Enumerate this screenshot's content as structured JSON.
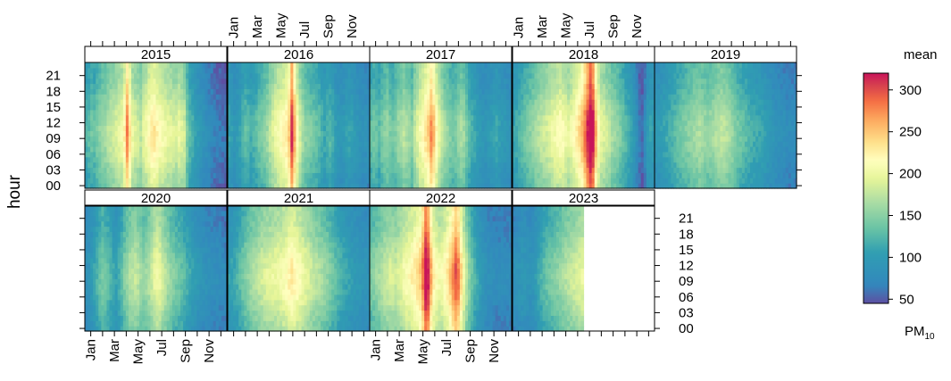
{
  "chart_data": {
    "type": "heatmap",
    "ylabel": "hour",
    "month_tick_labels": [
      "Jan",
      "Mar",
      "May",
      "Jul",
      "Sep",
      "Nov"
    ],
    "hour_tick_labels": [
      "00",
      "03",
      "06",
      "09",
      "12",
      "15",
      "18",
      "21"
    ],
    "hours_ticks": [
      0,
      3,
      6,
      9,
      12,
      15,
      18,
      21
    ],
    "months_ticks": [
      1,
      3,
      5,
      7,
      9,
      11
    ],
    "colorbar": {
      "title": "mean",
      "label_main": "PM",
      "label_sub": "10",
      "range": [
        45,
        320
      ],
      "tick_values": [
        50,
        100,
        150,
        200,
        250,
        300
      ],
      "tick_labels": [
        "50",
        "100",
        "150",
        "200",
        "250",
        "300"
      ]
    },
    "panels": [
      {
        "year": "2015",
        "weekly_mean": [
          112,
          118,
          126,
          122,
          132,
          140,
          146,
          150,
          158,
          164,
          168,
          172,
          180,
          185,
          205,
          255,
          215,
          182,
          174,
          168,
          160,
          178,
          188,
          200,
          210,
          212,
          202,
          196,
          190,
          185,
          180,
          178,
          174,
          172,
          180,
          175,
          168,
          132,
          116,
          108,
          100,
          92,
          86,
          80,
          74,
          70,
          66,
          62,
          60,
          58,
          56,
          55
        ]
      },
      {
        "year": "2016",
        "weekly_mean": [
          100,
          94,
          88,
          92,
          100,
          110,
          120,
          115,
          108,
          112,
          118,
          128,
          132,
          138,
          146,
          160,
          172,
          184,
          190,
          196,
          204,
          210,
          230,
          285,
          240,
          196,
          170,
          152,
          140,
          136,
          132,
          128,
          124,
          120,
          110,
          104,
          112,
          116,
          108,
          96,
          90,
          86,
          90,
          96,
          100,
          96,
          90,
          86,
          82,
          80,
          78,
          76
        ]
      },
      {
        "year": "2017",
        "weekly_mean": [
          120,
          128,
          124,
          118,
          130,
          138,
          142,
          132,
          128,
          135,
          146,
          150,
          158,
          152,
          148,
          140,
          162,
          176,
          190,
          200,
          212,
          225,
          250,
          232,
          200,
          178,
          164,
          150,
          144,
          136,
          130,
          134,
          142,
          150,
          146,
          130,
          118,
          110,
          104,
          96,
          90,
          86,
          84,
          90,
          94,
          98,
          102,
          96,
          92,
          88,
          84,
          82
        ]
      },
      {
        "year": "2018",
        "weekly_mean": [
          102,
          108,
          114,
          120,
          128,
          132,
          138,
          144,
          150,
          156,
          162,
          166,
          170,
          176,
          182,
          186,
          190,
          196,
          192,
          184,
          178,
          186,
          196,
          208,
          220,
          235,
          260,
          290,
          318,
          300,
          240,
          196,
          180,
          174,
          166,
          160,
          150,
          146,
          140,
          132,
          124,
          116,
          108,
          100,
          88,
          74,
          60,
          54,
          70,
          92,
          98,
          96
        ]
      },
      {
        "year": "2019",
        "weekly_mean": [
          88,
          92,
          96,
          100,
          104,
          108,
          112,
          118,
          124,
          128,
          132,
          134,
          138,
          142,
          146,
          150,
          154,
          150,
          146,
          142,
          146,
          150,
          154,
          158,
          162,
          160,
          156,
          150,
          144,
          136,
          130,
          126,
          122,
          118,
          114,
          110,
          106,
          104,
          102,
          100,
          96,
          92,
          88,
          84,
          80,
          78,
          76,
          74,
          72,
          70,
          70,
          70
        ]
      },
      {
        "year": "2020",
        "weekly_mean": [
          78,
          84,
          92,
          102,
          112,
          124,
          132,
          128,
          122,
          112,
          104,
          98,
          108,
          120,
          134,
          146,
          156,
          160,
          164,
          158,
          150,
          144,
          148,
          156,
          166,
          178,
          186,
          180,
          170,
          160,
          150,
          142,
          136,
          130,
          126,
          122,
          116,
          110,
          104,
          98,
          92,
          88,
          84,
          80,
          78,
          76,
          74,
          72,
          72,
          70,
          68,
          66
        ]
      },
      {
        "year": "2021",
        "weekly_mean": [
          96,
          100,
          104,
          110,
          118,
          128,
          136,
          142,
          148,
          154,
          158,
          162,
          168,
          172,
          176,
          178,
          180,
          182,
          184,
          188,
          192,
          196,
          204,
          210,
          204,
          198,
          192,
          186,
          180,
          174,
          168,
          162,
          158,
          154,
          150,
          146,
          140,
          134,
          128,
          122,
          116,
          110,
          106,
          102,
          98,
          94,
          90,
          88,
          86,
          84,
          82,
          80
        ]
      },
      {
        "year": "2022",
        "weekly_mean": [
          132,
          138,
          144,
          150,
          156,
          162,
          166,
          170,
          168,
          166,
          172,
          178,
          186,
          192,
          198,
          204,
          210,
          218,
          228,
          260,
          305,
          290,
          240,
          206,
          196,
          188,
          192,
          200,
          212,
          228,
          250,
          272,
          258,
          220,
          186,
          160,
          138,
          124,
          112,
          102,
          94,
          86,
          80,
          76,
          74,
          72,
          70,
          70,
          70,
          70,
          70,
          70
        ]
      },
      {
        "year": "2023",
        "weekly_mean": [
          76,
          80,
          84,
          88,
          86,
          82,
          80,
          84,
          92,
          102,
          112,
          118,
          124,
          128,
          132,
          136,
          140,
          144,
          150,
          156,
          160,
          164,
          168,
          172,
          176,
          180
        ]
      }
    ]
  }
}
